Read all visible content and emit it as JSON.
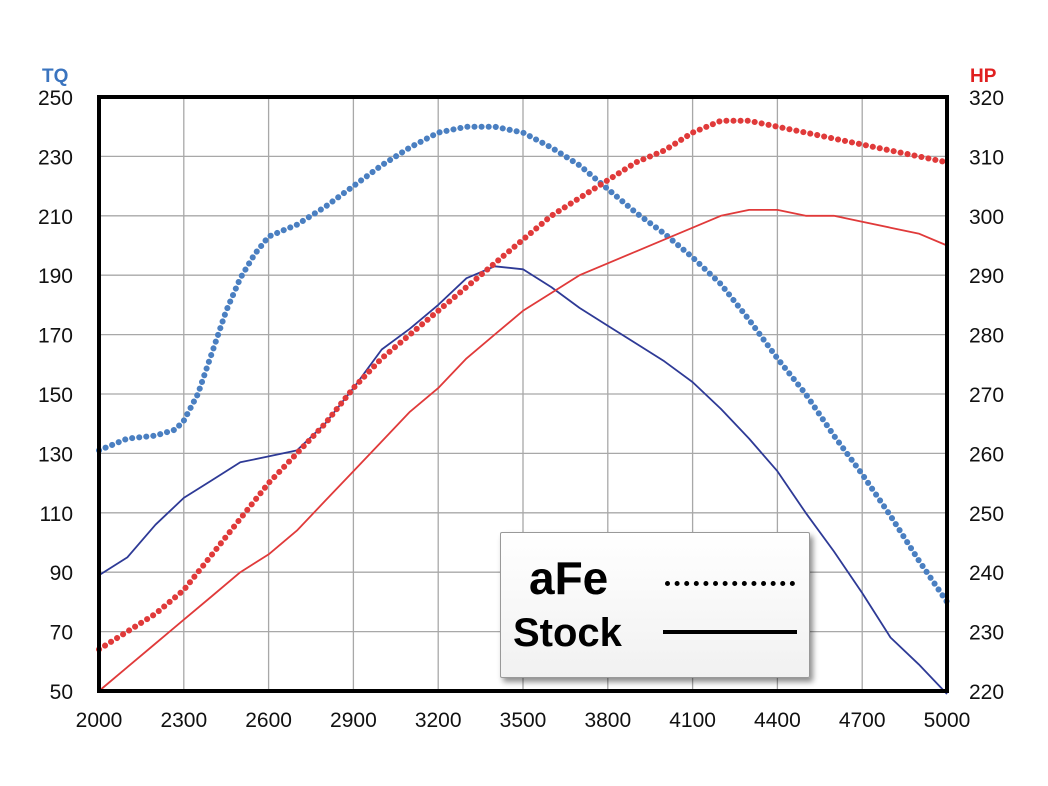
{
  "chart_data": {
    "type": "line",
    "left_axis_label": "TQ",
    "right_axis_label": "HP",
    "x_ticks": [
      "2000",
      "2300",
      "2600",
      "2900",
      "3200",
      "3500",
      "3800",
      "4100",
      "4400",
      "4700",
      "5000"
    ],
    "y_left_ticks": [
      "250",
      "230",
      "210",
      "190",
      "170",
      "150",
      "130",
      "110",
      "90",
      "70",
      "50"
    ],
    "y_right_ticks": [
      "320",
      "310",
      "300",
      "290",
      "280",
      "270",
      "260",
      "250",
      "240",
      "230",
      "220"
    ],
    "xlim": [
      2000,
      5000
    ],
    "ylim_left": [
      50,
      250
    ],
    "ylim_right": [
      220,
      320
    ],
    "grid": true,
    "legend_placement": "bottom-right",
    "colors": {
      "tq": "#4a7fc1",
      "tq_stock": "#2e3a96",
      "hp": "#e03a3a",
      "hp_stock": "#e03a3a"
    },
    "series": [
      {
        "name": "aFe",
        "measure": "TQ",
        "axis": "left",
        "style": "dotted",
        "color": "#4a7fc1",
        "x": [
          2000,
          2100,
          2200,
          2270,
          2300,
          2350,
          2400,
          2450,
          2500,
          2550,
          2600,
          2650,
          2700,
          2800,
          2900,
          3000,
          3100,
          3200,
          3300,
          3400,
          3500,
          3600,
          3700,
          3800,
          3900,
          4000,
          4100,
          4200,
          4300,
          4400,
          4500,
          4600,
          4700,
          4800,
          4900,
          5000
        ],
        "y": [
          131,
          135,
          136,
          138,
          141,
          150,
          164,
          178,
          189,
          197,
          203,
          205,
          207,
          213,
          220,
          227,
          233,
          238,
          240,
          240,
          238,
          233,
          227,
          219,
          211,
          204,
          196,
          187,
          175,
          162,
          150,
          136,
          123,
          109,
          94,
          80
        ]
      },
      {
        "name": "Stock",
        "measure": "TQ",
        "axis": "left",
        "style": "solid",
        "color": "#2e3a96",
        "x": [
          2000,
          2100,
          2200,
          2300,
          2400,
          2500,
          2600,
          2700,
          2800,
          2900,
          3000,
          3100,
          3200,
          3300,
          3400,
          3500,
          3600,
          3700,
          3800,
          3900,
          4000,
          4100,
          4200,
          4300,
          4400,
          4500,
          4600,
          4700,
          4800,
          4900,
          5000
        ],
        "y": [
          89,
          95,
          106,
          115,
          121,
          127,
          129,
          131,
          140,
          152,
          165,
          172,
          180,
          189,
          193,
          192,
          186,
          179,
          173,
          167,
          161,
          154,
          145,
          135,
          124,
          110,
          97,
          83,
          68,
          59,
          49
        ]
      },
      {
        "name": "aFe",
        "measure": "HP",
        "axis": "right",
        "style": "dotted",
        "color": "#e03a3a",
        "x": [
          2000,
          2100,
          2200,
          2300,
          2400,
          2500,
          2600,
          2700,
          2800,
          2900,
          3000,
          3100,
          3200,
          3300,
          3400,
          3500,
          3600,
          3700,
          3800,
          3900,
          4000,
          4100,
          4200,
          4300,
          4400,
          4500,
          4600,
          4700,
          4800,
          4900,
          5000
        ],
        "y": [
          227,
          230,
          233,
          237,
          243,
          249,
          255,
          260,
          265,
          271,
          276,
          280,
          284,
          288,
          292,
          296,
          300,
          303,
          306,
          309,
          311,
          314,
          316,
          316,
          315,
          314,
          313,
          312,
          311,
          310,
          309
        ]
      },
      {
        "name": "Stock",
        "measure": "HP",
        "axis": "right",
        "style": "solid",
        "color": "#e03a3a",
        "x": [
          2000,
          2100,
          2200,
          2300,
          2400,
          2500,
          2600,
          2700,
          2800,
          2900,
          3000,
          3100,
          3200,
          3300,
          3400,
          3500,
          3600,
          3700,
          3800,
          3900,
          4000,
          4100,
          4200,
          4300,
          4400,
          4500,
          4600,
          4700,
          4800,
          4900,
          5000
        ],
        "y": [
          220,
          224,
          228,
          232,
          236,
          240,
          243,
          247,
          252,
          257,
          262,
          267,
          271,
          276,
          280,
          284,
          287,
          290,
          292,
          294,
          296,
          298,
          300,
          301,
          301,
          300,
          300,
          299,
          298,
          297,
          295
        ]
      }
    ]
  },
  "legend": {
    "afe_label": "aFe",
    "stock_label": "Stock"
  }
}
